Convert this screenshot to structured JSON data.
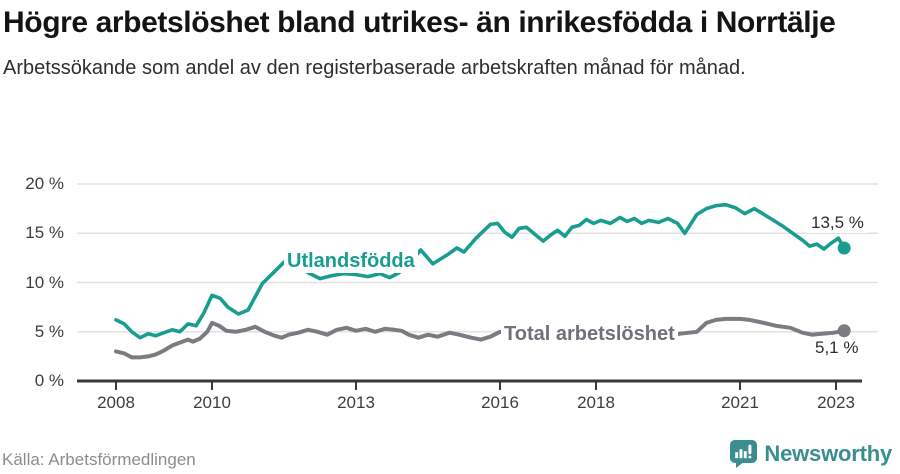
{
  "header": {
    "title": "Högre arbetslöshet bland utrikes- än inrikesfödda i Norrtälje",
    "subtitle": "Arbetssökande som andel av den registerbaserade arbetskraften månad för månad."
  },
  "chart_data": {
    "type": "line",
    "title": "Högre arbetslöshet bland utrikes- än inrikesfödda i Norrtälje",
    "xlabel": "",
    "ylabel": "",
    "unit": "%",
    "ylim": [
      0,
      20
    ],
    "xlim": [
      2008,
      2023.3
    ],
    "grid": "horizontal",
    "legend_position": "inline-labels",
    "y_ticks": [
      {
        "value": 0,
        "label": "0 %"
      },
      {
        "value": 5,
        "label": "5 %"
      },
      {
        "value": 10,
        "label": "10 %"
      },
      {
        "value": 15,
        "label": "15 %"
      },
      {
        "value": 20,
        "label": "20 %"
      }
    ],
    "x_ticks": [
      {
        "year": 2008,
        "label": "2008"
      },
      {
        "year": 2010,
        "label": "2010"
      },
      {
        "year": 2013,
        "label": "2013"
      },
      {
        "year": 2016,
        "label": "2016"
      },
      {
        "year": 2018,
        "label": "2018"
      },
      {
        "year": 2021,
        "label": "2021"
      },
      {
        "year": 2023,
        "label": "2023"
      }
    ],
    "series": [
      {
        "name": "Utlandsfödda",
        "color": "#199d90",
        "end_label": "13,5 %",
        "end_value": 13.5,
        "points": [
          [
            2008.0,
            6.2
          ],
          [
            2008.17,
            5.8
          ],
          [
            2008.33,
            5.0
          ],
          [
            2008.5,
            4.4
          ],
          [
            2008.67,
            4.8
          ],
          [
            2008.83,
            4.6
          ],
          [
            2009.0,
            4.9
          ],
          [
            2009.17,
            5.2
          ],
          [
            2009.33,
            5.0
          ],
          [
            2009.5,
            5.8
          ],
          [
            2009.67,
            5.6
          ],
          [
            2009.83,
            6.9
          ],
          [
            2010.0,
            8.7
          ],
          [
            2010.17,
            8.4
          ],
          [
            2010.33,
            7.5
          ],
          [
            2010.55,
            6.8
          ],
          [
            2010.75,
            7.2
          ],
          [
            2011.05,
            9.9
          ],
          [
            2011.3,
            11.1
          ],
          [
            2011.55,
            12.3
          ],
          [
            2011.75,
            11.9
          ],
          [
            2012.0,
            11.0
          ],
          [
            2012.25,
            10.4
          ],
          [
            2012.5,
            10.7
          ],
          [
            2012.75,
            10.9
          ],
          [
            2013.0,
            10.8
          ],
          [
            2013.25,
            10.6
          ],
          [
            2013.5,
            10.9
          ],
          [
            2013.7,
            10.5
          ],
          [
            2013.9,
            11.0
          ],
          [
            2014.1,
            11.9
          ],
          [
            2014.35,
            13.3
          ],
          [
            2014.6,
            11.9
          ],
          [
            2014.9,
            12.8
          ],
          [
            2015.1,
            13.5
          ],
          [
            2015.25,
            13.1
          ],
          [
            2015.5,
            14.5
          ],
          [
            2015.8,
            15.9
          ],
          [
            2015.95,
            16.0
          ],
          [
            2016.1,
            15.1
          ],
          [
            2016.25,
            14.6
          ],
          [
            2016.4,
            15.5
          ],
          [
            2016.55,
            15.6
          ],
          [
            2016.7,
            15.0
          ],
          [
            2016.9,
            14.2
          ],
          [
            2017.05,
            14.8
          ],
          [
            2017.2,
            15.3
          ],
          [
            2017.35,
            14.7
          ],
          [
            2017.5,
            15.6
          ],
          [
            2017.65,
            15.8
          ],
          [
            2017.8,
            16.4
          ],
          [
            2017.95,
            16.0
          ],
          [
            2018.1,
            16.3
          ],
          [
            2018.3,
            16.0
          ],
          [
            2018.5,
            16.6
          ],
          [
            2018.65,
            16.2
          ],
          [
            2018.8,
            16.5
          ],
          [
            2018.95,
            16.0
          ],
          [
            2019.1,
            16.3
          ],
          [
            2019.3,
            16.1
          ],
          [
            2019.5,
            16.5
          ],
          [
            2019.7,
            16.0
          ],
          [
            2019.85,
            15.0
          ],
          [
            2020.1,
            16.9
          ],
          [
            2020.3,
            17.5
          ],
          [
            2020.5,
            17.8
          ],
          [
            2020.7,
            17.9
          ],
          [
            2020.9,
            17.6
          ],
          [
            2021.1,
            17.0
          ],
          [
            2021.3,
            17.5
          ],
          [
            2021.5,
            16.9
          ],
          [
            2021.7,
            16.3
          ],
          [
            2021.9,
            15.7
          ],
          [
            2022.1,
            15.0
          ],
          [
            2022.3,
            14.3
          ],
          [
            2022.45,
            13.7
          ],
          [
            2022.6,
            13.9
          ],
          [
            2022.75,
            13.4
          ],
          [
            2022.9,
            14.0
          ],
          [
            2023.05,
            14.5
          ],
          [
            2023.17,
            13.5
          ]
        ]
      },
      {
        "name": "Total arbetslöshet",
        "color": "#7b7b82",
        "label_color": "#70707a",
        "end_label": "5,1 %",
        "end_value": 5.1,
        "points": [
          [
            2008.0,
            3.0
          ],
          [
            2008.17,
            2.8
          ],
          [
            2008.33,
            2.4
          ],
          [
            2008.5,
            2.4
          ],
          [
            2008.67,
            2.5
          ],
          [
            2008.83,
            2.7
          ],
          [
            2009.0,
            3.1
          ],
          [
            2009.17,
            3.6
          ],
          [
            2009.33,
            3.9
          ],
          [
            2009.5,
            4.2
          ],
          [
            2009.6,
            4.0
          ],
          [
            2009.75,
            4.3
          ],
          [
            2009.9,
            5.0
          ],
          [
            2010.0,
            5.9
          ],
          [
            2010.15,
            5.6
          ],
          [
            2010.3,
            5.1
          ],
          [
            2010.5,
            5.0
          ],
          [
            2010.7,
            5.2
          ],
          [
            2010.9,
            5.5
          ],
          [
            2011.1,
            5.0
          ],
          [
            2011.3,
            4.6
          ],
          [
            2011.45,
            4.4
          ],
          [
            2011.6,
            4.7
          ],
          [
            2011.8,
            4.9
          ],
          [
            2012.0,
            5.2
          ],
          [
            2012.2,
            5.0
          ],
          [
            2012.4,
            4.7
          ],
          [
            2012.6,
            5.2
          ],
          [
            2012.8,
            5.4
          ],
          [
            2013.0,
            5.1
          ],
          [
            2013.2,
            5.3
          ],
          [
            2013.4,
            5.0
          ],
          [
            2013.6,
            5.3
          ],
          [
            2013.8,
            5.2
          ],
          [
            2013.95,
            5.1
          ],
          [
            2014.1,
            4.7
          ],
          [
            2014.3,
            4.4
          ],
          [
            2014.5,
            4.7
          ],
          [
            2014.7,
            4.5
          ],
          [
            2014.95,
            4.9
          ],
          [
            2015.15,
            4.7
          ],
          [
            2015.4,
            4.4
          ],
          [
            2015.6,
            4.2
          ],
          [
            2015.8,
            4.5
          ],
          [
            2016.0,
            5.0
          ],
          [
            2016.25,
            4.8
          ],
          [
            2016.5,
            4.7
          ],
          [
            2016.75,
            4.8
          ],
          [
            2017.0,
            4.7
          ],
          [
            2017.25,
            4.8
          ],
          [
            2017.5,
            4.7
          ],
          [
            2017.75,
            4.8
          ],
          [
            2018.0,
            4.7
          ],
          [
            2018.25,
            4.6
          ],
          [
            2018.5,
            4.7
          ],
          [
            2018.75,
            4.8
          ],
          [
            2019.0,
            4.7
          ],
          [
            2019.25,
            4.6
          ],
          [
            2019.5,
            4.7
          ],
          [
            2019.75,
            4.8
          ],
          [
            2020.1,
            5.0
          ],
          [
            2020.3,
            5.9
          ],
          [
            2020.5,
            6.2
          ],
          [
            2020.7,
            6.3
          ],
          [
            2021.0,
            6.3
          ],
          [
            2021.2,
            6.2
          ],
          [
            2021.5,
            5.9
          ],
          [
            2021.75,
            5.6
          ],
          [
            2022.05,
            5.4
          ],
          [
            2022.3,
            4.9
          ],
          [
            2022.5,
            4.7
          ],
          [
            2022.7,
            4.8
          ],
          [
            2022.95,
            4.9
          ],
          [
            2023.17,
            5.1
          ]
        ]
      }
    ],
    "axis_color": "#3a3a3a",
    "gridline_color": "#e2e2e2",
    "tick_label_color": "#3d3d3d"
  },
  "footer": {
    "source": "Källa: Arbetsförmedlingen",
    "brand": "Newsworthy",
    "brand_color": "#3b8e8f"
  }
}
